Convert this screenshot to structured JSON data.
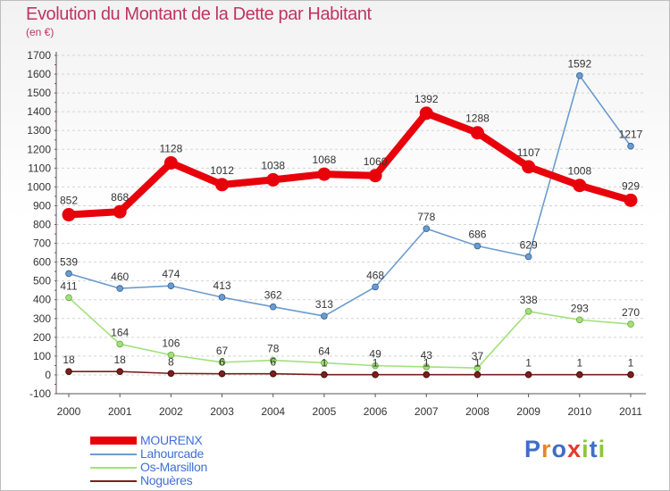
{
  "title": "Evolution du Montant de la Dette par Habitant",
  "unit": "(en €)",
  "brand": {
    "letters": [
      "P",
      "r",
      "o",
      "x",
      "i",
      "t",
      "i"
    ],
    "colors": [
      "#3f6fc6",
      "#e4862a",
      "#3f6fc6",
      "#e33a2a",
      "#8cc63f",
      "#3f6fc6",
      "#8cc63f"
    ]
  },
  "chart_data": {
    "type": "line",
    "x": [
      "2000",
      "2001",
      "2002",
      "2003",
      "2004",
      "2005",
      "2006",
      "2007",
      "2008",
      "2009",
      "2010",
      "2011"
    ],
    "ylim": [
      -100,
      1700
    ],
    "yticks": [
      "-100",
      "0",
      "100",
      "200",
      "300",
      "400",
      "500",
      "600",
      "700",
      "800",
      "900",
      "1000",
      "1100",
      "1200",
      "1300",
      "1400",
      "1500",
      "1600",
      "1700"
    ],
    "grid": "horizontal dashed",
    "legend_position": "bottom-left",
    "series": [
      {
        "name": "MOURENX",
        "color": "#e8000b",
        "values": [
          852,
          868,
          1128,
          1012,
          1038,
          1068,
          1060,
          1392,
          1288,
          1107,
          1008,
          929
        ],
        "labels": [
          "852",
          "868",
          "1128",
          "1012",
          "1038",
          "1068",
          "1060",
          "1392",
          "1288",
          "1107",
          "1008",
          "929"
        ]
      },
      {
        "name": "Lahourcade",
        "color": "#6b9bd0",
        "values": [
          539,
          460,
          474,
          413,
          362,
          313,
          468,
          778,
          686,
          629,
          1592,
          1217
        ],
        "labels": [
          "539",
          "460",
          "474",
          "413",
          "362",
          "313",
          "468",
          "778",
          "686",
          "629",
          "1592",
          "1217"
        ]
      },
      {
        "name": "Os-Marsillon",
        "color": "#a3e07a",
        "values": [
          411,
          164,
          106,
          67,
          78,
          64,
          49,
          43,
          37,
          338,
          293,
          270
        ],
        "labels": [
          "411",
          "164",
          "106",
          "67",
          "78",
          "64",
          "49",
          "43",
          "37",
          "338",
          "293",
          "270"
        ]
      },
      {
        "name": "Noguères",
        "color": "#7a1f1f",
        "values": [
          18,
          18,
          8,
          6,
          6,
          1,
          1,
          1,
          1,
          1,
          1,
          1
        ],
        "labels": [
          "18",
          "18",
          "8",
          "6",
          "6",
          "1",
          "1",
          "1",
          "1",
          "1",
          "1",
          "1"
        ]
      }
    ]
  }
}
